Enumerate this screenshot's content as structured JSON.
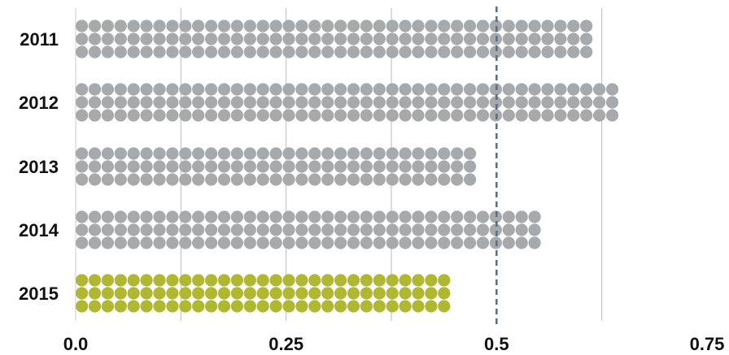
{
  "chart_data": {
    "type": "bar",
    "style": "dot-matrix",
    "orientation": "horizontal",
    "categories": [
      "2011",
      "2012",
      "2013",
      "2014",
      "2015"
    ],
    "values": [
      0.62,
      0.64,
      0.47,
      0.56,
      0.44
    ],
    "highlight_category": "2015",
    "colors": {
      "default": "#a7a9ab",
      "highlight": "#b0b832",
      "reference_line": "#4f6f8f",
      "grid": "#bbbbbb"
    },
    "reference_line": 0.5,
    "xlim": [
      0,
      0.75
    ],
    "xticks": [
      0,
      0.25,
      0.5,
      0.75
    ],
    "xtick_labels": [
      "0.0",
      "0.25",
      "0.5",
      "0.75"
    ],
    "grid": true,
    "title": "",
    "xlabel": "",
    "ylabel": ""
  }
}
